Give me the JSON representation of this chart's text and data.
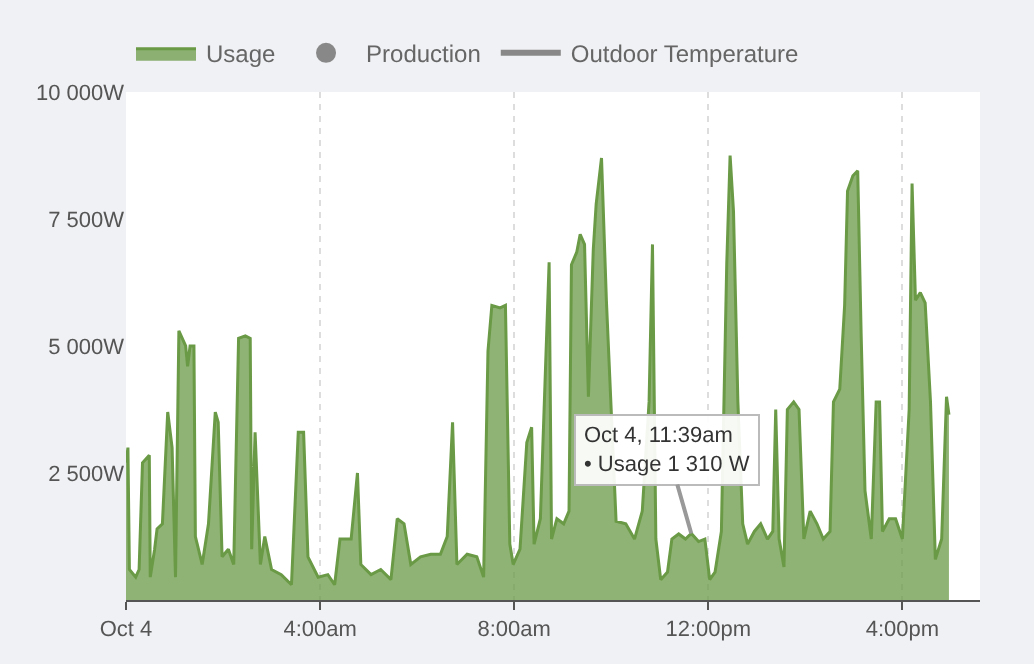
{
  "chart_data": {
    "type": "area",
    "xlim": [
      0,
      17.6
    ],
    "xticks": [
      {
        "value": 0,
        "label": "Oct 4"
      },
      {
        "value": 4,
        "label": "4:00am"
      },
      {
        "value": 8,
        "label": "8:00am"
      },
      {
        "value": 12,
        "label": "12:00pm"
      },
      {
        "value": 16,
        "label": "4:00pm"
      }
    ],
    "ylim": [
      0,
      10000
    ],
    "yticks": [
      {
        "value": 2500,
        "label": "2 500W"
      },
      {
        "value": 5000,
        "label": "5 000W"
      },
      {
        "value": 7500,
        "label": "7 500W"
      },
      {
        "value": 10000,
        "label": "10 000W"
      }
    ],
    "grid": "x",
    "legend": "top left",
    "series": [
      {
        "name": "Usage",
        "color": "#6a9a45",
        "x": [
          0,
          0.04,
          0.07,
          0.2,
          0.27,
          0.34,
          0.48,
          0.5,
          0.59,
          0.64,
          0.75,
          0.86,
          0.95,
          1.02,
          1.09,
          1.23,
          1.27,
          1.32,
          1.4,
          1.43,
          1.57,
          1.7,
          1.84,
          1.9,
          1.98,
          2.11,
          2.22,
          2.32,
          2.46,
          2.56,
          2.59,
          2.66,
          2.77,
          2.86,
          3.0,
          3.2,
          3.41,
          3.55,
          3.66,
          3.75,
          3.96,
          4.16,
          4.3,
          4.41,
          4.64,
          4.77,
          4.84,
          5.05,
          5.25,
          5.46,
          5.59,
          5.73,
          5.87,
          6.07,
          6.28,
          6.48,
          6.62,
          6.73,
          6.82,
          7.03,
          7.23,
          7.37,
          7.46,
          7.54,
          7.71,
          7.82,
          7.91,
          7.98,
          8.12,
          8.26,
          8.36,
          8.41,
          8.54,
          8.72,
          8.77,
          8.88,
          9.02,
          9.13,
          9.18,
          9.29,
          9.36,
          9.45,
          9.53,
          9.63,
          9.69,
          9.8,
          9.9,
          10.1,
          10.3,
          10.48,
          10.64,
          10.78,
          10.85,
          10.92,
          11.02,
          11.16,
          11.25,
          11.39,
          11.53,
          11.65,
          11.8,
          11.93,
          12.03,
          12.14,
          12.27,
          12.38,
          12.45,
          12.52,
          12.61,
          12.71,
          12.81,
          12.95,
          13.08,
          13.22,
          13.33,
          13.39,
          13.46,
          13.56,
          13.63,
          13.76,
          13.87,
          13.97,
          14.1,
          14.24,
          14.37,
          14.51,
          14.58,
          14.71,
          14.81,
          14.87,
          14.98,
          15.08,
          15.15,
          15.23,
          15.36,
          15.46,
          15.53,
          15.59,
          15.73,
          15.86,
          16.0,
          16.14,
          16.2,
          16.27,
          16.37,
          16.47,
          16.58,
          16.68,
          16.81,
          16.91,
          16.96
        ],
        "values": [
          2700,
          3000,
          600,
          450,
          600,
          2700,
          2850,
          450,
          1000,
          1400,
          1500,
          3700,
          3000,
          450,
          5300,
          5000,
          4600,
          5000,
          5000,
          1250,
          700,
          1500,
          3700,
          3500,
          850,
          1000,
          700,
          5150,
          5200,
          5150,
          1000,
          3300,
          700,
          1250,
          600,
          500,
          300,
          3300,
          3300,
          850,
          450,
          500,
          300,
          1200,
          1200,
          2500,
          700,
          500,
          600,
          400,
          1600,
          1500,
          700,
          850,
          900,
          900,
          1250,
          3500,
          700,
          900,
          850,
          450,
          4900,
          5800,
          5750,
          5800,
          1100,
          700,
          1000,
          3100,
          3400,
          1100,
          1600,
          6650,
          1200,
          1600,
          1500,
          1750,
          6600,
          6850,
          7200,
          7000,
          4000,
          6900,
          7800,
          8700,
          5900,
          1550,
          1500,
          1200,
          1750,
          3900,
          7000,
          1200,
          400,
          550,
          1200,
          1300,
          1200,
          1310,
          1150,
          1200,
          400,
          550,
          1350,
          6600,
          8750,
          7650,
          3900,
          1500,
          1100,
          1350,
          1500,
          1200,
          1350,
          3750,
          1200,
          650,
          3750,
          3900,
          3750,
          1200,
          1750,
          1500,
          1200,
          1350,
          3900,
          4150,
          5800,
          8050,
          8350,
          8450,
          5250,
          2150,
          1200,
          3900,
          3900,
          1350,
          1600,
          1600,
          1200,
          3750,
          8200,
          5900,
          6050,
          5850,
          3900,
          800,
          1200,
          4000,
          3650
        ]
      },
      {
        "name": "Production",
        "type": "scatter",
        "color": "#888888"
      },
      {
        "name": "Outdoor Temperature",
        "type": "line",
        "color": "#888888"
      }
    ],
    "annotations": [
      {
        "text": "Oct 4, 11:39am\n• Usage 1 310 W",
        "x": 11.65,
        "y": 1310
      }
    ]
  }
}
